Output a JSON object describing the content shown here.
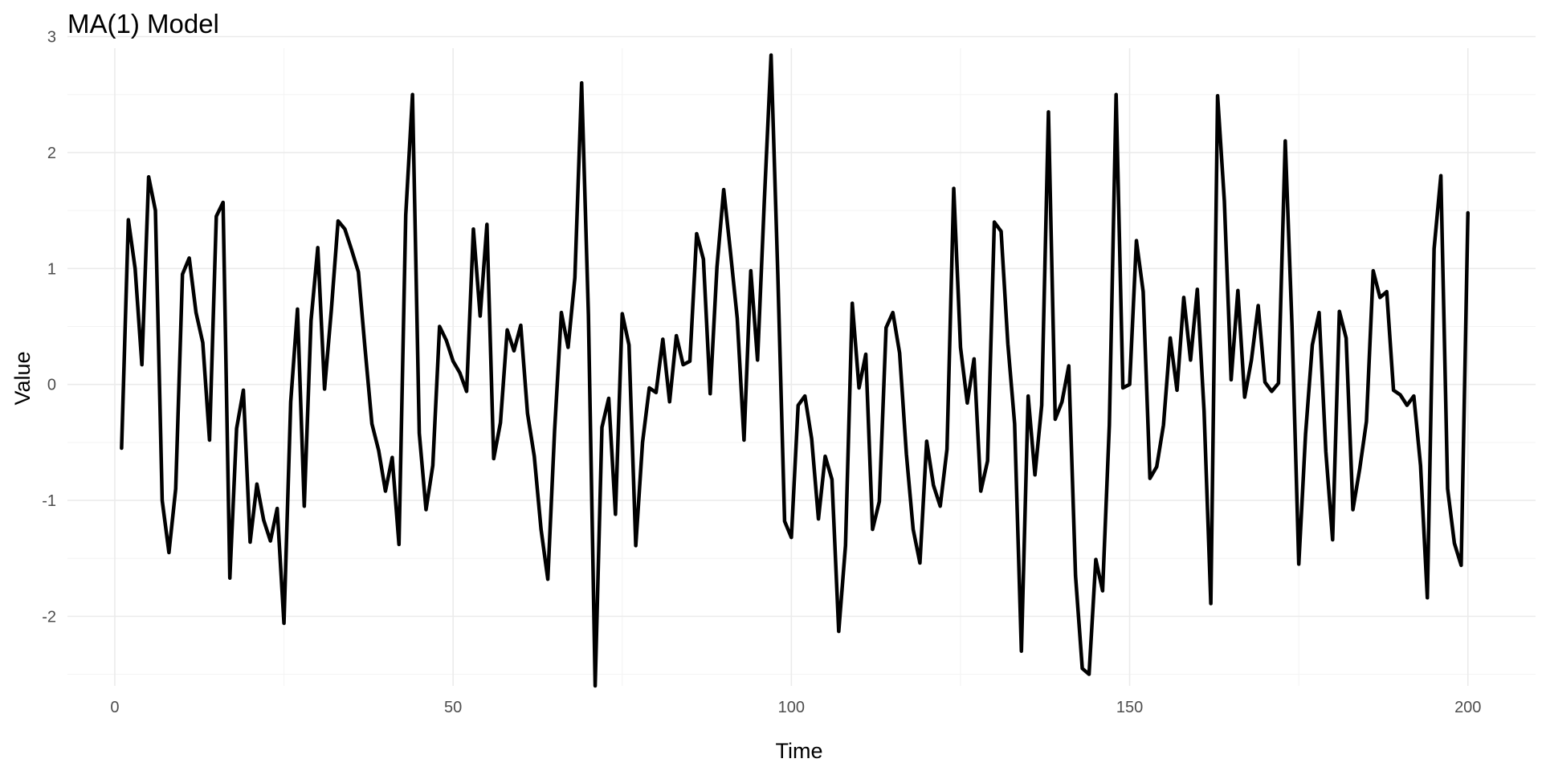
{
  "chart_data": {
    "type": "line",
    "title": "MA(1) Model",
    "xlabel": "Time",
    "ylabel": "Value",
    "xlim": [
      -7,
      210
    ],
    "ylim": [
      -2.6,
      2.9
    ],
    "x_ticks": [
      0,
      50,
      100,
      150,
      200
    ],
    "x_tick_labels": [
      "0",
      "50",
      "100",
      "150",
      "200"
    ],
    "y_ticks": [
      -2,
      -1,
      0,
      1,
      2,
      3
    ],
    "y_tick_labels": [
      "-2",
      "-1",
      "0",
      "1",
      "2",
      "3"
    ],
    "grid": true,
    "line_color": "#000000",
    "x_start": 1,
    "x_end": 200,
    "values": [
      -0.55,
      1.42,
      1.0,
      0.17,
      1.79,
      1.5,
      -1.0,
      -1.45,
      -0.9,
      0.95,
      1.09,
      0.62,
      0.36,
      -0.48,
      1.45,
      1.57,
      -1.67,
      -0.38,
      -0.05,
      -1.36,
      -0.86,
      -1.17,
      -1.35,
      -1.07,
      -2.06,
      -0.15,
      0.65,
      -1.05,
      0.55,
      1.18,
      -0.04,
      0.64,
      1.41,
      1.34,
      1.16,
      0.97,
      0.3,
      -0.34,
      -0.57,
      -0.92,
      -0.63,
      -1.38,
      1.46,
      2.5,
      -0.42,
      -1.08,
      -0.7,
      0.5,
      0.38,
      0.2,
      0.1,
      -0.06,
      1.34,
      0.59,
      1.38,
      -0.64,
      -0.33,
      0.47,
      0.29,
      0.51,
      -0.25,
      -0.62,
      -1.25,
      -1.68,
      -0.4,
      0.62,
      0.32,
      0.92,
      2.6,
      0.6,
      -2.6,
      -0.37,
      -0.12,
      -1.12,
      0.61,
      0.34,
      -1.39,
      -0.5,
      -0.03,
      -0.07,
      0.39,
      -0.15,
      0.42,
      0.17,
      0.2,
      1.3,
      1.08,
      -0.08,
      1.01,
      1.68,
      1.14,
      0.57,
      -0.48,
      0.98,
      0.21,
      1.58,
      2.84,
      0.94,
      -1.18,
      -1.32,
      -0.18,
      -0.1,
      -0.47,
      -1.16,
      -0.62,
      -0.82,
      -2.13,
      -1.39,
      0.7,
      -0.03,
      0.26,
      -1.25,
      -1.01,
      0.49,
      0.62,
      0.27,
      -0.6,
      -1.25,
      -1.54,
      -0.49,
      -0.87,
      -1.05,
      -0.56,
      1.69,
      0.32,
      -0.16,
      0.22,
      -0.92,
      -0.66,
      1.4,
      1.32,
      0.35,
      -0.34,
      -2.3,
      -0.1,
      -0.78,
      -0.18,
      2.35,
      -0.3,
      -0.15,
      0.16,
      -1.65,
      -2.45,
      -2.5,
      -1.51,
      -1.78,
      -0.35,
      2.5,
      -0.03,
      0.0,
      1.24,
      0.8,
      -0.81,
      -0.71,
      -0.35,
      0.4,
      -0.05,
      0.75,
      0.21,
      0.82,
      -0.23,
      -1.89,
      2.49,
      1.58,
      0.04,
      0.81,
      -0.11,
      0.21,
      0.68,
      0.02,
      -0.06,
      0.01,
      2.1,
      0.5,
      -1.55,
      -0.43,
      0.34,
      0.62,
      -0.58,
      -1.34,
      0.63,
      0.4,
      -1.08,
      -0.73,
      -0.32,
      0.98,
      0.75,
      0.8,
      -0.05,
      -0.09,
      -0.18,
      -0.1,
      -0.7,
      -1.84,
      1.17,
      1.8,
      -0.9,
      -1.37,
      -1.56,
      1.48
    ]
  }
}
